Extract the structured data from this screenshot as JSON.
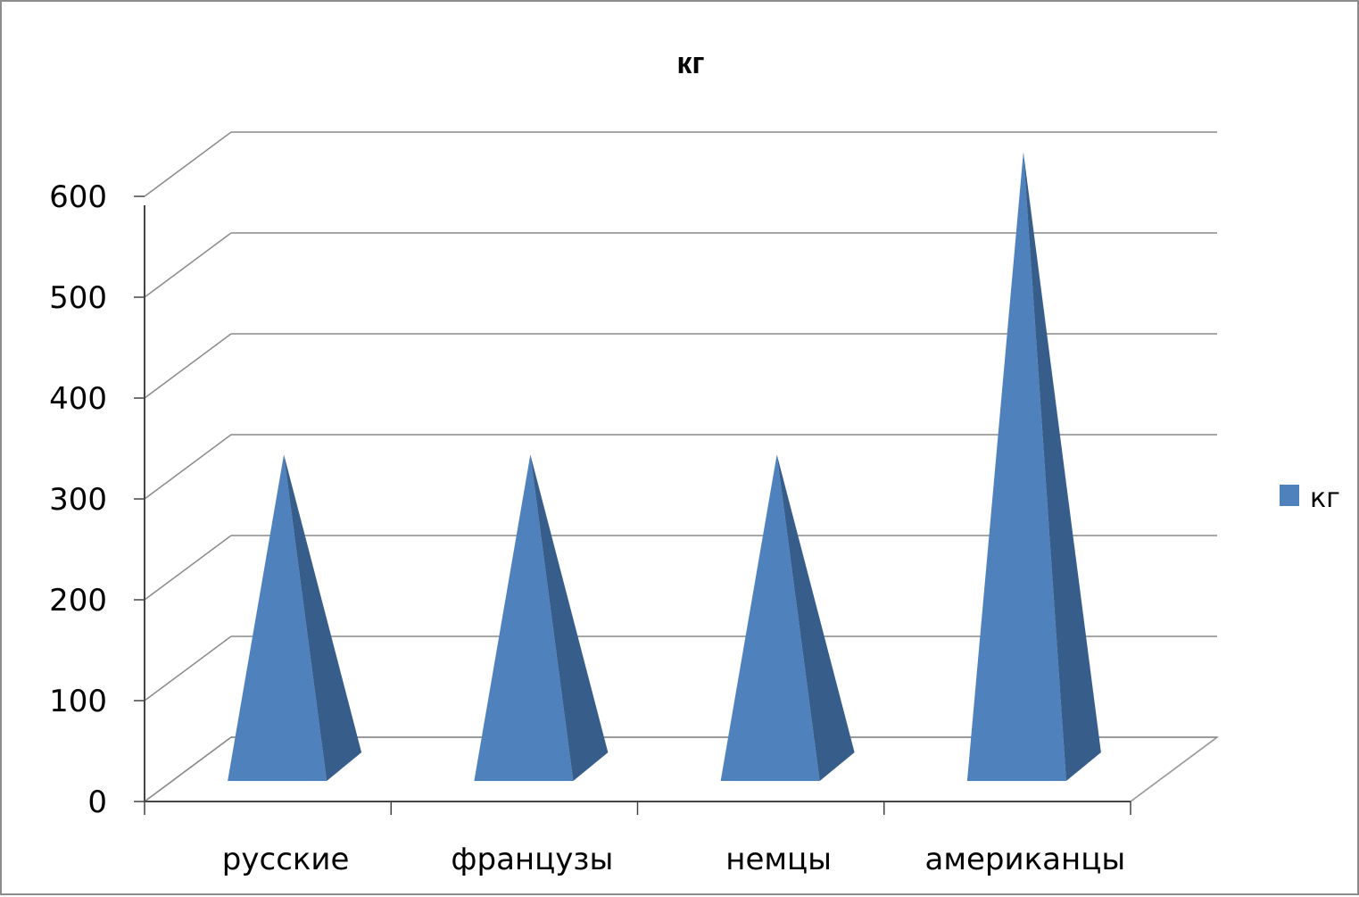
{
  "chart_data": {
    "type": "bar",
    "style": "3d-pyramid",
    "title": "кг",
    "categories": [
      "русские",
      "французы",
      "немцы",
      "американцы"
    ],
    "series": [
      {
        "name": "кг",
        "values": [
          310,
          310,
          310,
          610
        ],
        "color": "#4f81bd"
      }
    ],
    "ylim": [
      0,
      600
    ],
    "yticks": [
      "0",
      "100",
      "200",
      "300",
      "400",
      "500",
      "600"
    ],
    "xlabel": "",
    "ylabel": "",
    "grid": true,
    "legend": "right"
  }
}
